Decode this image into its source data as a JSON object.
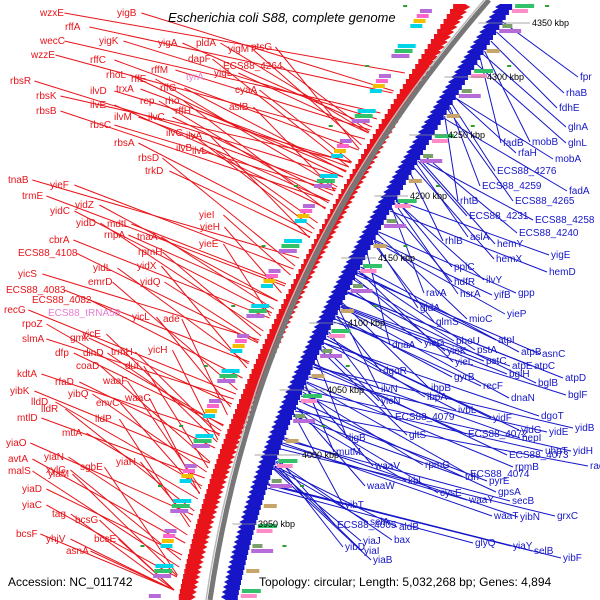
{
  "title": "Escherichia coli S88, complete genome",
  "footer": {
    "accession": "Accession: NC_011742",
    "topology": "Topology: circular; Length: 5,032,268 bp; Genes: 4,894"
  },
  "colors": {
    "forward": "#e8141a",
    "reverse": "#1616c8",
    "rna": "#e57fd0",
    "backbone": "#777777",
    "gc_dot": "#2e9e2e"
  },
  "kbp_markers": [
    "3950 kbp",
    "4000 kbp",
    "4050 kbp",
    "4100 kbp",
    "4150 kbp",
    "4200 kbp",
    "4250 kbp",
    "4300 kbp",
    "4350 kbp"
  ],
  "forward_genes": [
    "wzxE",
    "rffA",
    "wecC",
    "yigK",
    "wzzE",
    "rffC",
    "rbsR",
    "rhoL",
    "rffE",
    "rffM",
    "rbsK",
    "ilvD",
    "trxA",
    "rffG",
    "rbsB",
    "ilvE",
    "rep",
    "rho",
    "rffH",
    "rbsC",
    "ilvM",
    "ilvC",
    "aslB",
    "rbsA",
    "ilvG",
    "ilvA",
    "rbsD",
    "ilvB",
    "trkD",
    "ilvL",
    "yigB",
    "yigA",
    "pldA",
    "yigM",
    "ptsG",
    "dapF",
    "yigL",
    "ECS88_4264",
    "cyaA",
    "tnaB",
    "yieF",
    "trmE",
    "yidZ",
    "yidC",
    "yidD",
    "mdtL",
    "rnpA",
    "tnaA",
    "cbrA",
    "rpmH",
    "ECS88_4108",
    "yidL",
    "yidX",
    "emrD",
    "yidQ",
    "yicS",
    "ECS88_4083",
    "ECS88_4082",
    "recG",
    "yicL",
    "ade",
    "rpoZ",
    "yicE",
    "slmA",
    "gmk",
    "dfp",
    "dinD",
    "trmH",
    "yicH",
    "coaD",
    "dut",
    "waaF",
    "kdtA",
    "rfaD",
    "yibK",
    "yibQ",
    "lldD",
    "envC",
    "waaC",
    "lldR",
    "lldP",
    "mtlD",
    "mtlA",
    "yiaO",
    "yiaN",
    "avtA",
    "xylG",
    "malS",
    "yiaM",
    "sgbE",
    "yiaH",
    "yiaD",
    "yiaC",
    "tag",
    "bcsG",
    "bcsF",
    "yhjV",
    "bcsE",
    "asnA",
    "yieI",
    "yieH",
    "yieE"
  ],
  "rna_genes": [
    "ECS88_tRNA58",
    "tyrA"
  ],
  "reverse_genes": [
    "fpr",
    "rhaB",
    "fdhE",
    "glnA",
    "glnL",
    "fadB",
    "mobB",
    "rfaH",
    "mobA",
    "ECS88_4276",
    "fadA",
    "ECS88_4259",
    "rhtB",
    "ECS88_4265",
    "ECS88_4231",
    "ECS88_4258",
    "rhlB",
    "aslA",
    "ECS88_4240",
    "hemY",
    "hemX",
    "yigE",
    "hemD",
    "ppiC",
    "hdfR",
    "ilvY",
    "ravA",
    "hsrA",
    "yifB",
    "gpp",
    "gidA",
    "yieP",
    "glmS",
    "mioC",
    "dnaA",
    "yieG",
    "phoU",
    "atpI",
    "yieK",
    "pstA",
    "atpB",
    "yieL",
    "pstC",
    "atpE",
    "bglH",
    "atpC",
    "asnC",
    "atpD",
    "bglB",
    "dgoR",
    "gyrB",
    "recF",
    "bglF",
    "ilvN",
    "ibpB",
    "dnaN",
    "yicN",
    "ibpA",
    "ivbL",
    "dgoT",
    "yidF",
    "ECS88_4079",
    "yidG",
    "yidE",
    "yidB",
    "ECS88_4072",
    "nepI",
    "ligB",
    "gltS",
    "ECS88_4073",
    "uhpT",
    "yidH",
    "mutM",
    "rpmG",
    "waaV",
    "rpmB",
    "ECS88_4074",
    "radC",
    "tdh",
    "kbl",
    "pyrE",
    "waaW",
    "cysE",
    "gpsA",
    "waaY",
    "secB",
    "grxC",
    "waaT",
    "yibN",
    "yibD",
    "yibT",
    "selA",
    "aldB",
    "ECS88_4005",
    "yiaJ",
    "bax",
    "yiaI",
    "yiaB",
    "glyQ",
    "yiaY",
    "selB",
    "yibF",
    "yibH"
  ]
}
